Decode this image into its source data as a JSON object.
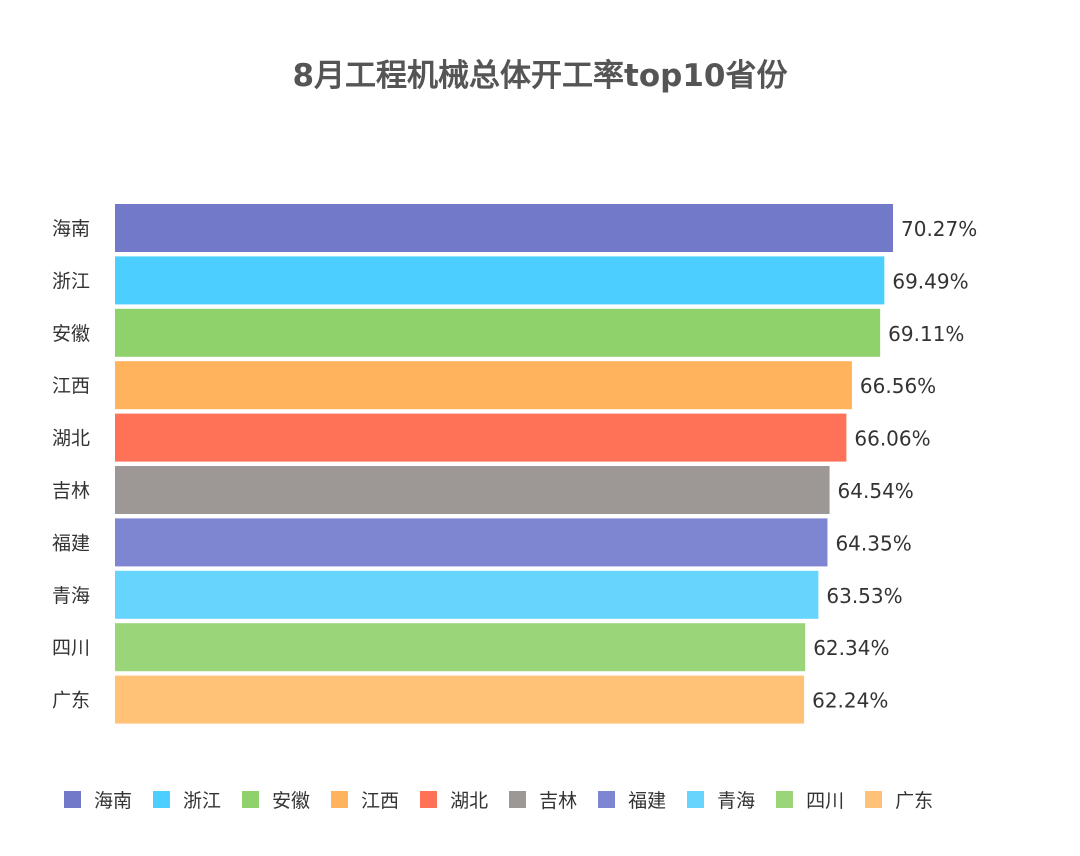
{
  "chart_data": {
    "type": "bar",
    "orientation": "horizontal",
    "title": "8月工程机械总体开工率top10省份",
    "categories": [
      "海南",
      "浙江",
      "安徽",
      "江西",
      "湖北",
      "吉林",
      "福建",
      "青海",
      "四川",
      "广东"
    ],
    "values": [
      70.27,
      69.49,
      69.11,
      66.56,
      66.06,
      64.54,
      64.35,
      63.53,
      62.34,
      62.24
    ],
    "value_labels": [
      "70.27%",
      "69.49%",
      "69.11%",
      "66.56%",
      "66.06%",
      "64.54%",
      "64.35%",
      "63.53%",
      "62.34%",
      "62.24%"
    ],
    "colors": [
      "#7379c9",
      "#4ccfff",
      "#8fd16a",
      "#ffb35c",
      "#ff7257",
      "#9d9895",
      "#7f86d1",
      "#66d4fd",
      "#9bd579",
      "#ffc276"
    ],
    "legend_position": "bottom",
    "grid": false
  }
}
